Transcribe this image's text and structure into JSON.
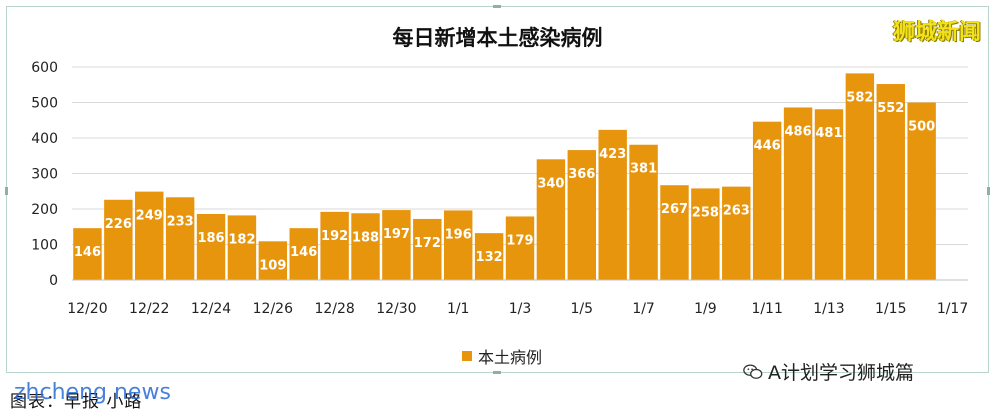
{
  "brand": "狮城新闻",
  "caption": "图表：早报 小路",
  "watermark": "zhcheng news",
  "wechat": {
    "icon": "wechat-icon",
    "label": "A计划学习狮城篇"
  },
  "colors": {
    "bar": "#e8950e",
    "grid": "#d9d9d9",
    "text": "#222222"
  },
  "chart_data": {
    "type": "bar",
    "title": "每日新增本土感染病例",
    "legend": "本土病例",
    "legend_position": "bottom",
    "grid": true,
    "ylim": [
      0,
      600
    ],
    "yticks": [
      0,
      100,
      200,
      300,
      400,
      500,
      600
    ],
    "x_tick_labels": [
      "12/20",
      "12/22",
      "12/24",
      "12/26",
      "12/28",
      "12/30",
      "1/1",
      "1/3",
      "1/5",
      "1/7",
      "1/9",
      "1/11",
      "1/13",
      "1/15",
      "1/17"
    ],
    "categories": [
      "12/20",
      "12/21",
      "12/22",
      "12/23",
      "12/24",
      "12/25",
      "12/26",
      "12/27",
      "12/28",
      "12/29",
      "12/30",
      "12/31",
      "1/1",
      "1/2",
      "1/3",
      "1/4",
      "1/5",
      "1/6",
      "1/7",
      "1/8",
      "1/9",
      "1/10",
      "1/11",
      "1/12",
      "1/13",
      "1/14",
      "1/15",
      "1/16"
    ],
    "series": [
      {
        "name": "本土病例",
        "values": [
          146,
          226,
          249,
          233,
          186,
          182,
          109,
          146,
          192,
          188,
          197,
          172,
          196,
          132,
          179,
          340,
          366,
          423,
          381,
          267,
          258,
          263,
          446,
          486,
          481,
          582,
          552,
          500
        ]
      }
    ]
  }
}
